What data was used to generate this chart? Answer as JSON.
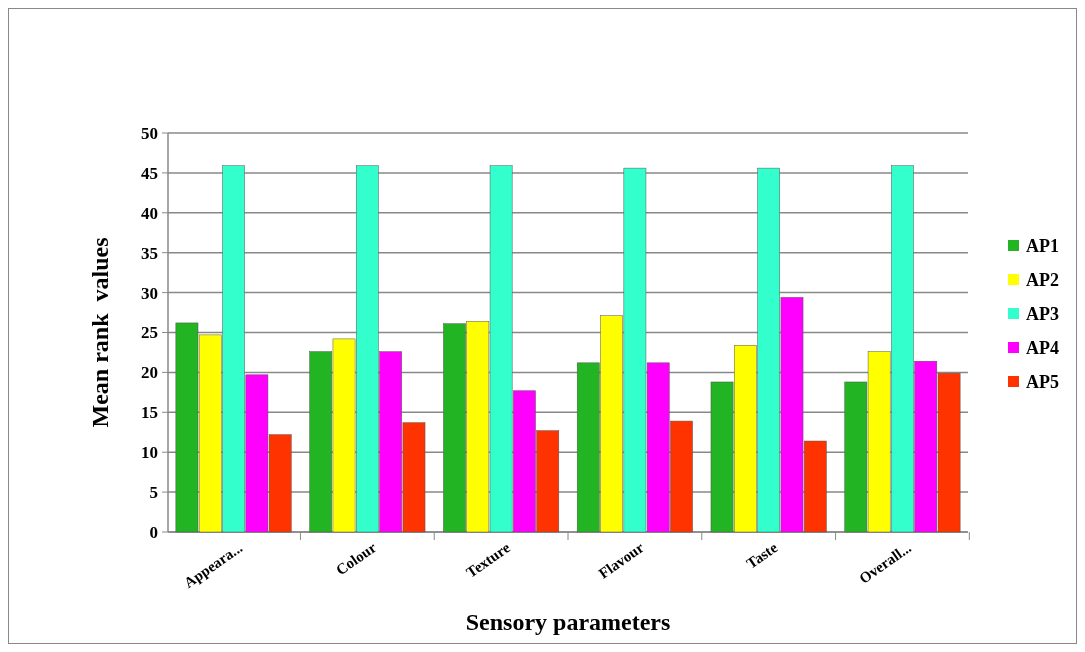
{
  "chart_data": {
    "type": "bar",
    "xlabel": "Sensory parameters",
    "ylabel": "Mean rank  values",
    "categories": [
      "Appeara...",
      "Colour",
      "Texture",
      "Flavour",
      "Taste",
      "Overall..."
    ],
    "series": [
      {
        "name": "AP1",
        "color": "#22b422",
        "values": [
          26.2,
          22.6,
          26.1,
          21.2,
          18.8,
          18.8
        ]
      },
      {
        "name": "AP2",
        "color": "#ffff00",
        "values": [
          24.7,
          24.2,
          26.4,
          27.1,
          23.4,
          22.6
        ]
      },
      {
        "name": "AP3",
        "color": "#33ffcc",
        "values": [
          45.9,
          45.9,
          45.9,
          45.6,
          45.6,
          45.9
        ]
      },
      {
        "name": "AP4",
        "color": "#ff00ff",
        "values": [
          19.7,
          22.6,
          17.7,
          21.2,
          29.4,
          21.4
        ]
      },
      {
        "name": "AP5",
        "color": "#ff3300",
        "values": [
          12.2,
          13.7,
          12.7,
          13.9,
          11.4,
          19.9
        ]
      }
    ],
    "ylim": [
      0,
      50
    ],
    "yticks": [
      0,
      5,
      10,
      15,
      20,
      25,
      30,
      35,
      40,
      45,
      50
    ],
    "grid": "y",
    "legend": "right"
  }
}
